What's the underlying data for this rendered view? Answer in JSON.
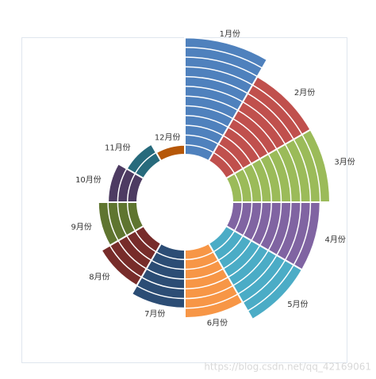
{
  "chart_data": {
    "type": "ring-rose",
    "categories": [
      "1月份",
      "2月份",
      "3月份",
      "4月份",
      "5月份",
      "6月份",
      "7月份",
      "8月份",
      "9月份",
      "10月份",
      "11月份",
      "12月份"
    ],
    "values": [
      12,
      10,
      10,
      9,
      9,
      7,
      6,
      5,
      4,
      3,
      2,
      1
    ],
    "colors": [
      "#4f81bd",
      "#c0504d",
      "#9bbb59",
      "#8064a2",
      "#4bacc6",
      "#f79646",
      "#2c4d75",
      "#772c2a",
      "#5f7530",
      "#4d3b62",
      "#276a7c",
      "#b65708"
    ]
  },
  "watermark": "https://blog.csdn.net/qq_42169061"
}
